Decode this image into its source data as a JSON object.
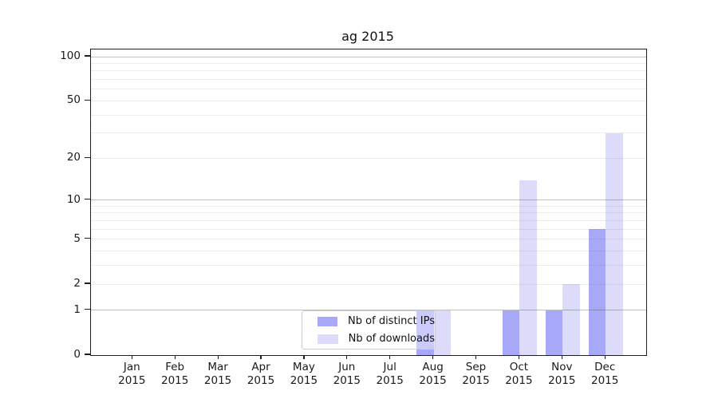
{
  "chart_data": {
    "type": "bar",
    "title": "ag 2015",
    "categories": [
      "Jan",
      "Feb",
      "Mar",
      "Apr",
      "May",
      "Jun",
      "Jul",
      "Aug",
      "Sep",
      "Oct",
      "Nov",
      "Dec"
    ],
    "category_year": "2015",
    "series": [
      {
        "name": "Nb of distinct IPs",
        "color": "#a8a8f8",
        "values": [
          0,
          0,
          0,
          0,
          0,
          0,
          0,
          1,
          0,
          1,
          1,
          6
        ]
      },
      {
        "name": "Nb of downloads",
        "color": "#dcdcfa",
        "values": [
          0,
          0,
          0,
          0,
          0,
          0,
          0,
          1,
          0,
          14,
          2,
          30
        ]
      }
    ],
    "y_axis": {
      "scale": "log1p",
      "tick_values": [
        0,
        1,
        2,
        5,
        10,
        20,
        50,
        100
      ],
      "range": [
        0,
        110
      ],
      "grid": true
    },
    "legend": {
      "position": "lower center"
    }
  }
}
